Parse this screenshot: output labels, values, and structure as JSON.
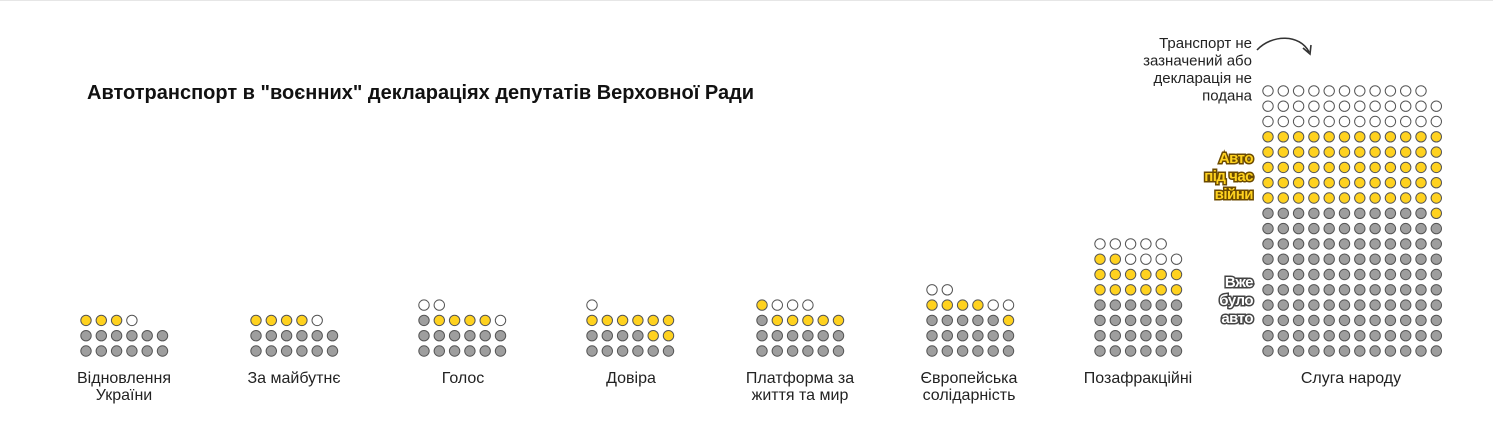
{
  "colors": {
    "background": "#ffffff",
    "wartime_fill": "#ffd21f",
    "existing_fill": "#9e9e9e",
    "none_fill": "#ffffff",
    "dot_stroke": "#555555",
    "legend_yellow_stroke": "#6b4a00",
    "legend_gray_stroke": "#444444"
  },
  "chart_data": {
    "type": "waffle",
    "title": "Автотранспорт в \"воєнних\" деклараціях депутатів Верховної Ради",
    "categories_legend": [
      {
        "key": "wartime",
        "label_lines": [
          "Авто",
          "під час",
          "війни"
        ]
      },
      {
        "key": "existing",
        "label_lines": [
          "Вже",
          "було",
          "авто"
        ]
      },
      {
        "key": "none",
        "label_lines": [
          "Транспорт не",
          "зазначений або",
          "декларація не",
          "подана"
        ]
      }
    ],
    "parties": [
      {
        "name_lines": [
          "Відновлення",
          "України"
        ],
        "existing": 12,
        "wartime": 3,
        "none": 1,
        "cols": 6
      },
      {
        "name_lines": [
          "За майбутнє"
        ],
        "existing": 12,
        "wartime": 4,
        "none": 1,
        "cols": 6
      },
      {
        "name_lines": [
          "Голос"
        ],
        "existing": 13,
        "wartime": 4,
        "none": 3,
        "cols": 6
      },
      {
        "name_lines": [
          "Довіра"
        ],
        "existing": 10,
        "wartime": 8,
        "none": 1,
        "cols": 6
      },
      {
        "name_lines": [
          "Платформа за",
          "життя та мир"
        ],
        "existing": 13,
        "wartime": 6,
        "none": 3,
        "cols": 6
      },
      {
        "name_lines": [
          "Європейська",
          "солідарність"
        ],
        "existing": 17,
        "wartime": 5,
        "none": 4,
        "cols": 6
      },
      {
        "name_lines": [
          "Позафракційні"
        ],
        "existing": 24,
        "wartime": 14,
        "none": 9,
        "cols": 6
      },
      {
        "name_lines": [
          "Слуга народу"
        ],
        "existing": 119,
        "wartime": 61,
        "none": 35,
        "cols": 12
      }
    ]
  }
}
